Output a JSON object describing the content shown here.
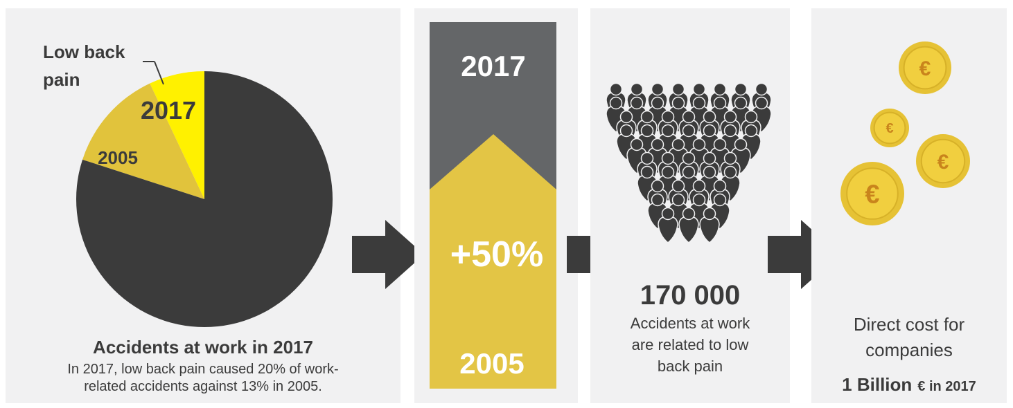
{
  "pie": {
    "label_low_back": "Low back",
    "label_pain": "pain",
    "label_2017": "2017",
    "label_2005": "2005",
    "title": "Accidents at work in 2017",
    "desc_line1": "In 2017, low back pain caused 20% of work-",
    "desc_line2": "related accidents against 13% in 2005."
  },
  "chart_data": {
    "type": "pie",
    "slices": [
      {
        "label": "2017",
        "value": 7
      },
      {
        "label": "2005",
        "value": 13
      },
      {
        "label": "",
        "value": 80
      }
    ]
  },
  "growth": {
    "top_label": "2017",
    "mid_label": "+50%",
    "bottom_label": "2005"
  },
  "people": {
    "number": "170 000",
    "line1": "Accidents at work",
    "line2": "are related to low",
    "line3": "back pain"
  },
  "cost": {
    "line1": "Direct cost for",
    "line2": "companies",
    "amount": "1 Billion",
    "unit": "€ in 2017",
    "coin_symbol": "€"
  },
  "colors": {
    "dark": "#3b3b3b",
    "yellow_bright": "#fff100",
    "yellow_muted": "#e1c33c",
    "gold": "#e3c545",
    "grey": "#646668",
    "panel": "#f1f1f2"
  }
}
